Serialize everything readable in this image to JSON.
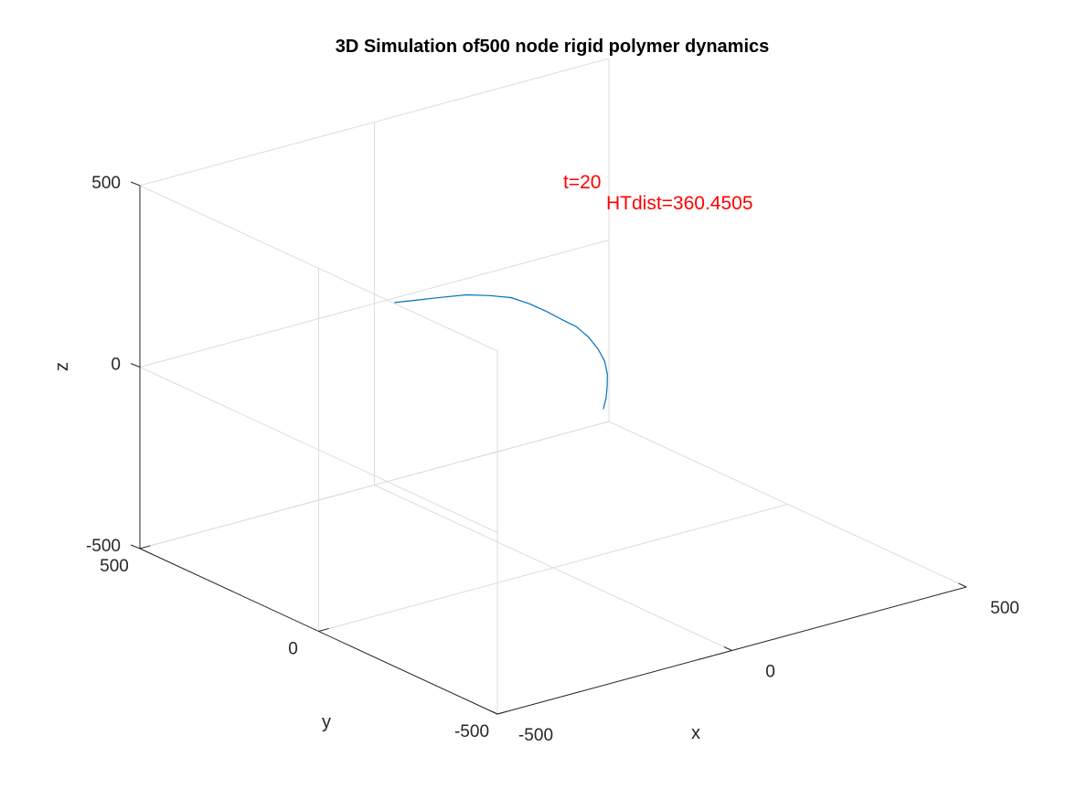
{
  "chart_data": {
    "type": "line",
    "projection": "3d",
    "title": "3D Simulation of500 node rigid polymer dynamics",
    "xlabel": "x",
    "ylabel": "y",
    "zlabel": "z",
    "xlim": [
      -500,
      500
    ],
    "ylim": [
      -500,
      500
    ],
    "zlim": [
      -500,
      500
    ],
    "grid": true,
    "legend": "none",
    "x_ticks": [
      "-500",
      "0",
      "500"
    ],
    "y_ticks": [
      "-500",
      "0",
      "500"
    ],
    "z_ticks": [
      "-500",
      "0",
      "500"
    ],
    "series": [
      {
        "color": "#0072bd",
        "points": [
          [
            -170,
            220,
            190
          ],
          [
            -140,
            195,
            198
          ],
          [
            -105,
            175,
            202
          ],
          [
            -70,
            150,
            208
          ],
          [
            -40,
            125,
            207
          ],
          [
            -10,
            105,
            200
          ],
          [
            15,
            85,
            183
          ],
          [
            40,
            70,
            160
          ],
          [
            60,
            55,
            138
          ],
          [
            80,
            40,
            118
          ],
          [
            95,
            25,
            90
          ],
          [
            105,
            12,
            60
          ],
          [
            110,
            0,
            30
          ],
          [
            108,
            -10,
            0
          ],
          [
            100,
            -20,
            -25
          ],
          [
            90,
            -30,
            -50
          ],
          [
            78,
            -38,
            -72
          ]
        ]
      }
    ],
    "annotations": [
      {
        "text": "t=20",
        "color": "#ff0000"
      },
      {
        "text": "HTdist=360.4505",
        "color": "#ff0000"
      }
    ]
  }
}
